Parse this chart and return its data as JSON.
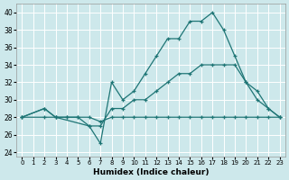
{
  "xlabel": "Humidex (Indice chaleur)",
  "background_color": "#cde8eb",
  "grid_color": "#ffffff",
  "line_color": "#1e7575",
  "xlim": [
    -0.5,
    23.5
  ],
  "ylim": [
    23.5,
    41
  ],
  "xticks": [
    0,
    1,
    2,
    3,
    4,
    5,
    6,
    7,
    8,
    9,
    10,
    11,
    12,
    13,
    14,
    15,
    16,
    17,
    18,
    19,
    20,
    21,
    22,
    23
  ],
  "yticks": [
    24,
    26,
    28,
    30,
    32,
    34,
    36,
    38,
    40
  ],
  "series": [
    {
      "x": [
        0,
        2,
        3,
        4,
        5,
        6,
        7,
        8,
        9,
        10,
        11,
        12,
        13,
        14,
        15,
        16,
        17,
        18,
        19,
        20,
        21,
        22,
        23
      ],
      "y": [
        28,
        28,
        28,
        28,
        28,
        28,
        27.5,
        28,
        28,
        28,
        28,
        28,
        28,
        28,
        28,
        28,
        28,
        28,
        28,
        28,
        28,
        28,
        28
      ]
    },
    {
      "x": [
        0,
        2,
        3,
        4,
        5,
        6,
        7,
        8,
        9,
        10,
        11,
        12,
        13,
        14,
        15,
        16,
        17,
        18,
        19,
        20,
        21,
        22,
        23
      ],
      "y": [
        28,
        29,
        28,
        28,
        28,
        27,
        27,
        29,
        29,
        30,
        30,
        31,
        32,
        33,
        33,
        34,
        34,
        34,
        34,
        32,
        31,
        29,
        28
      ]
    },
    {
      "x": [
        0,
        2,
        3,
        6,
        7,
        8,
        9,
        10,
        11,
        12,
        13,
        14,
        15,
        16,
        17,
        18,
        19,
        20,
        21,
        22,
        23
      ],
      "y": [
        28,
        29,
        28,
        27,
        25,
        32,
        30,
        31,
        33,
        35,
        37,
        37,
        39,
        39,
        40,
        38,
        35,
        32,
        30,
        29,
        28
      ]
    }
  ]
}
